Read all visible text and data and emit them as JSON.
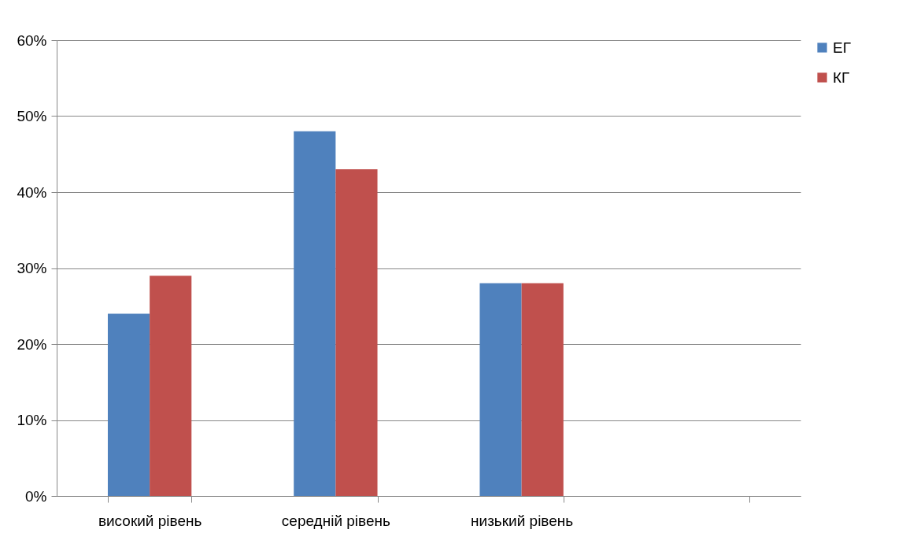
{
  "chart_data": {
    "type": "bar",
    "categories": [
      "високий рівень",
      "середній рівень",
      "низький рівень",
      null
    ],
    "series": [
      {
        "name": "ЕГ",
        "color": "#4f81bd",
        "values": [
          24,
          48,
          28,
          null
        ]
      },
      {
        "name": "КГ",
        "color": "#c0504d",
        "values": [
          29,
          43,
          28,
          null
        ]
      }
    ],
    "ylim": [
      0,
      60
    ],
    "yticks": [
      {
        "value": 0,
        "label": "0%"
      },
      {
        "value": 10,
        "label": "10%"
      },
      {
        "value": 20,
        "label": "20%"
      },
      {
        "value": 30,
        "label": "30%"
      },
      {
        "value": 40,
        "label": "40%"
      },
      {
        "value": 50,
        "label": "50%"
      },
      {
        "value": 60,
        "label": "60%"
      }
    ],
    "grid": "y",
    "legend": "right"
  }
}
